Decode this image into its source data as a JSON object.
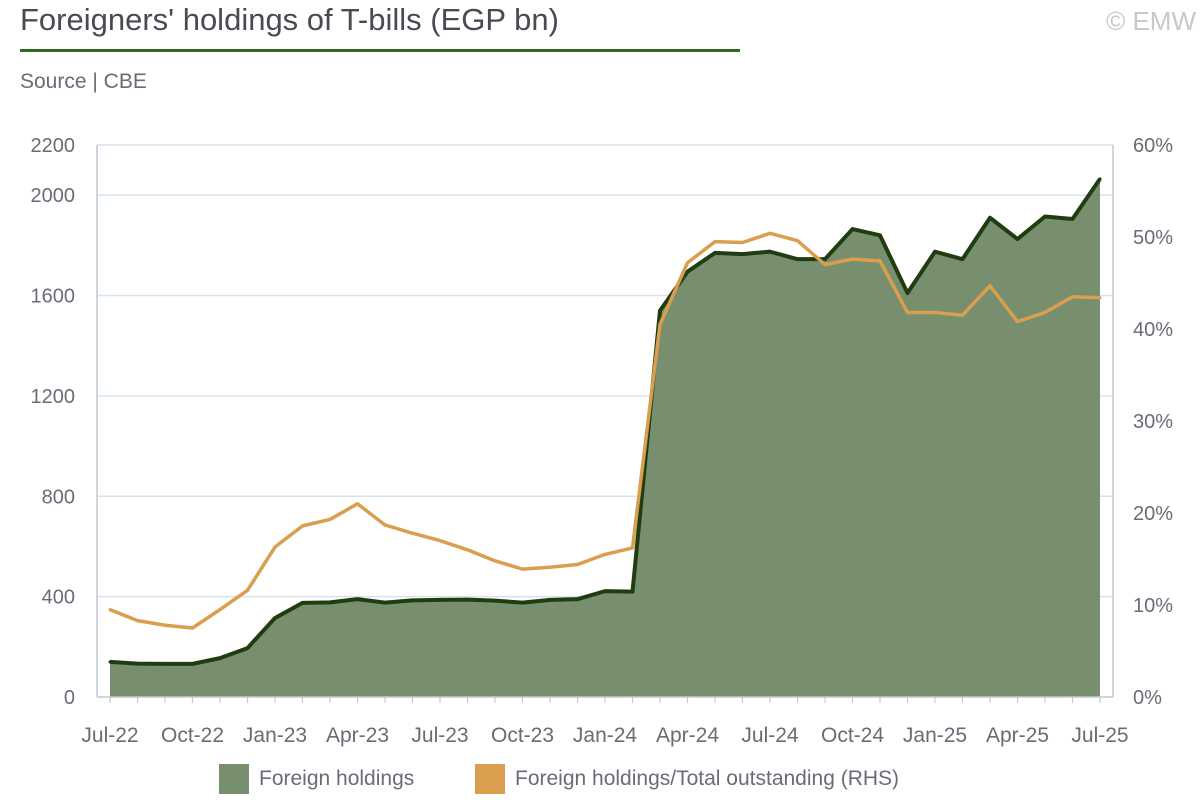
{
  "header": {
    "title": "Foreigners' holdings of T-bills (EGP bn)",
    "source": "Source | CBE",
    "copyright": "© EMW"
  },
  "colors": {
    "area_fill": "#778f6e",
    "area_line": "#1f3d10",
    "ratio_line": "#d99e4e",
    "grid": "#d6e2ec",
    "axis": "#bfc9d2",
    "title_rule": "#2f6b1f"
  },
  "chart_data": {
    "type": "area",
    "title": "Foreigners' holdings of T-bills (EGP bn)",
    "x": [
      "Jul-22",
      "Aug-22",
      "Sep-22",
      "Oct-22",
      "Nov-22",
      "Dec-22",
      "Jan-23",
      "Feb-23",
      "Mar-23",
      "Apr-23",
      "May-23",
      "Jun-23",
      "Jul-23",
      "Aug-23",
      "Sep-23",
      "Oct-23",
      "Nov-23",
      "Dec-23",
      "Jan-24",
      "Feb-24",
      "Mar-24",
      "Apr-24",
      "May-24",
      "Jun-24",
      "Jul-24",
      "Aug-24",
      "Sep-24",
      "Oct-24",
      "Nov-24",
      "Dec-24",
      "Jan-25",
      "Feb-25",
      "Mar-25",
      "Apr-25",
      "May-25",
      "Jun-25",
      "Jul-25"
    ],
    "x_tick_labels": [
      "Jul-22",
      "Oct-22",
      "Jan-23",
      "Apr-23",
      "Jul-23",
      "Oct-23",
      "Jan-24",
      "Apr-24",
      "Jul-24",
      "Oct-24",
      "Jan-25",
      "Apr-25",
      "Jul-25"
    ],
    "series": [
      {
        "name": "Foreign holdings",
        "axis": "left",
        "type": "area",
        "values": [
          140,
          133,
          132,
          132,
          155,
          195,
          315,
          375,
          377,
          390,
          376,
          385,
          387,
          388,
          384,
          376,
          387,
          390,
          422,
          420,
          1540,
          1695,
          1770,
          1765,
          1775,
          1745,
          1745,
          1865,
          1840,
          1610,
          1775,
          1745,
          1910,
          1825,
          1915,
          1905,
          2065
        ]
      },
      {
        "name": "Foreign holdings/Total outstanding (RHS)",
        "axis": "right",
        "type": "line",
        "values": [
          9.5,
          8.3,
          7.8,
          7.5,
          9.5,
          11.6,
          16.3,
          18.6,
          19.3,
          21.0,
          18.7,
          17.8,
          17.0,
          16.0,
          14.8,
          13.9,
          14.1,
          14.4,
          15.5,
          16.2,
          40.5,
          47.2,
          49.5,
          49.4,
          50.4,
          49.6,
          47.0,
          47.6,
          47.4,
          41.8,
          41.8,
          41.5,
          44.7,
          40.8,
          41.8,
          43.5,
          43.4
        ]
      }
    ],
    "y_left": {
      "min": 0,
      "max": 2200,
      "ticks": [
        0,
        400,
        800,
        1200,
        1600,
        2000,
        2200
      ]
    },
    "y_right": {
      "min": 0,
      "max": 60,
      "ticks": [
        0,
        10,
        20,
        30,
        40,
        50,
        60
      ],
      "suffix": "%"
    },
    "legend": {
      "position": "bottom"
    },
    "grid": true
  }
}
